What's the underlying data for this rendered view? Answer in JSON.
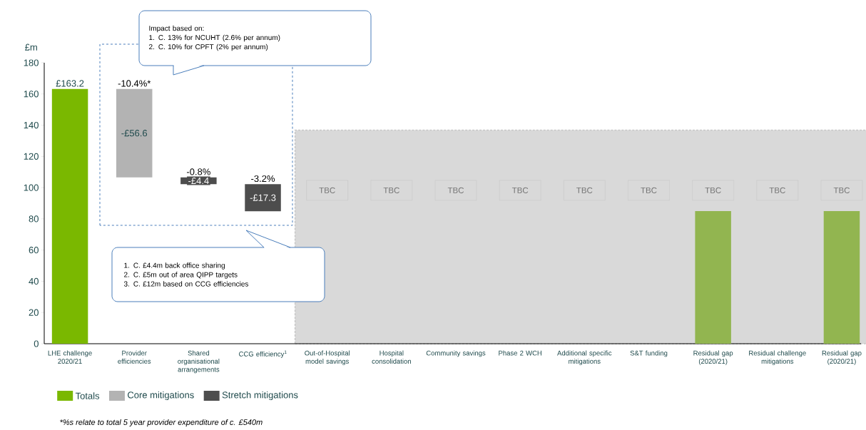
{
  "chart_data": {
    "type": "bar",
    "categories": [
      "LHE challenge 2020/21",
      "Provider efficiencies",
      "Shared organisational arrangements",
      "CCG efficiency$^{1}$",
      "Out-of-Hospital model savings",
      "Hospital consolidation",
      "Community savings",
      "Phase 2 WCH",
      "Additional specific mitigations",
      "S&T funding",
      "Residual gap (2020/21)",
      "Residual challenge mitigations",
      "Residual gap (2020/21)"
    ],
    "ylabel": "£m",
    "ylim": [
      0,
      180
    ],
    "yticks": [
      0,
      20,
      40,
      60,
      80,
      100,
      120,
      140,
      160,
      180
    ],
    "series": [
      {
        "name": "Totals",
        "color": "#7ab800",
        "colors": [
          "#7ab800",
          null,
          null,
          null,
          null,
          null,
          null,
          null,
          null,
          null,
          "#92b550",
          null,
          "#92b550"
        ],
        "values": [
          163.2,
          null,
          null,
          null,
          null,
          null,
          null,
          null,
          null,
          null,
          85,
          null,
          85
        ],
        "value_labels": [
          "£163.2",
          null,
          null,
          null,
          null,
          null,
          null,
          null,
          null,
          null,
          null,
          null,
          null
        ]
      },
      {
        "name": "Core mitigations",
        "color": "#b3b3b3",
        "values": [
          null,
          -56.6,
          null,
          null,
          null,
          null,
          null,
          null,
          null,
          null,
          null,
          null,
          null
        ],
        "base": [
          null,
          163.2,
          null,
          null,
          null,
          null,
          null,
          null,
          null,
          null,
          null,
          null,
          null
        ],
        "value_labels": [
          null,
          "-£56.6",
          null,
          null,
          null,
          null,
          null,
          null,
          null,
          null,
          null,
          null,
          null
        ]
      },
      {
        "name": "Stretch mitigations",
        "color": "#4d4d4d",
        "values": [
          null,
          null,
          -4.4,
          -17.3,
          null,
          null,
          null,
          null,
          null,
          null,
          null,
          null,
          null
        ],
        "base": [
          null,
          null,
          106.6,
          102.2,
          null,
          null,
          null,
          null,
          null,
          null,
          null,
          null,
          null
        ],
        "value_labels": [
          null,
          null,
          "-£4.4",
          "-£17.3",
          null,
          null,
          null,
          null,
          null,
          null,
          null,
          null,
          null
        ]
      }
    ],
    "legend": "bottom",
    "annotations": [
      "Impact based on:",
      "1.    C. 13% for NCUHT (2.6% per annum)",
      "2.    C. 10% for CPFT (2% per annum)",
      "1.    C. £4.4m back office sharing",
      "2.    C. £5m out of area QIPP targets",
      "3.    C. £12m based on CCG efficiencies",
      "TBC",
      "TBC",
      "TBC",
      "TBC",
      "TBC",
      "TBC",
      "TBC",
      "TBC",
      "TBC",
      "*%s relate to total 5 year provider expenditure of c. £540m",
      {
        "text": "-10.4%*",
        "x": "Provider efficiencies",
        "y": 163.2
      },
      {
        "text": "-0.8%",
        "x": "Shared organisational arrangements",
        "y": 106.6
      },
      {
        "text": "-3.2%",
        "x": "CCG efficiency$^{1}$",
        "y": 102.2
      }
    ]
  }
}
